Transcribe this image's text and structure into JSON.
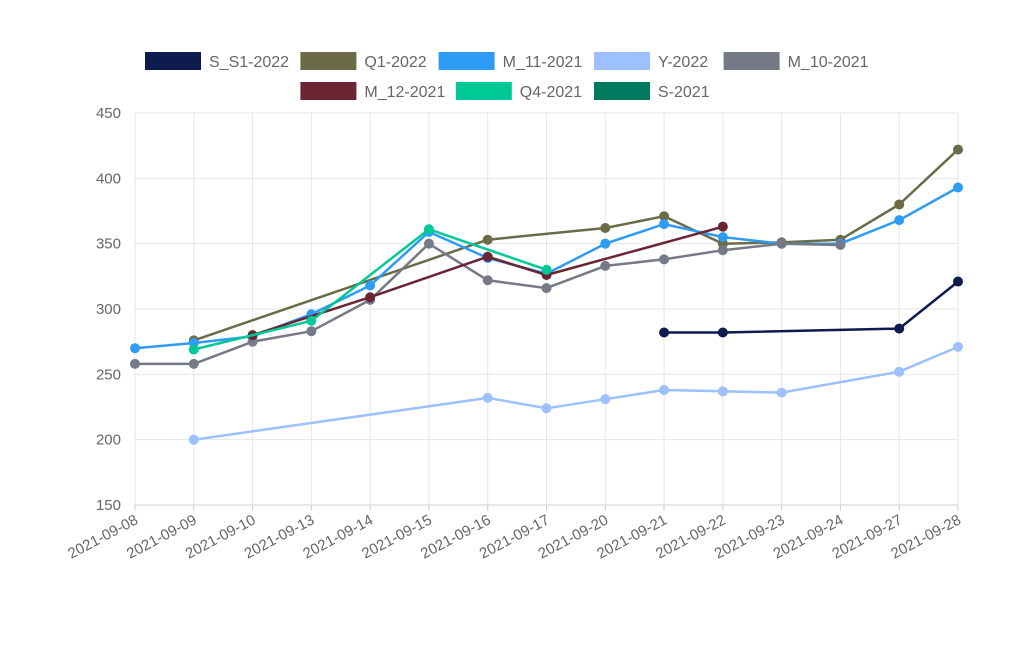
{
  "chart_data": {
    "type": "line",
    "title": "",
    "xlabel": "",
    "ylabel": "",
    "grid": true,
    "legend_position": "top",
    "ylim": [
      150,
      450
    ],
    "y_ticks": [
      150,
      200,
      250,
      300,
      350,
      400,
      450
    ],
    "categories": [
      "2021-09-08",
      "2021-09-09",
      "2021-09-10",
      "2021-09-13",
      "2021-09-14",
      "2021-09-15",
      "2021-09-16",
      "2021-09-17",
      "2021-09-20",
      "2021-09-21",
      "2021-09-22",
      "2021-09-23",
      "2021-09-24",
      "2021-09-27",
      "2021-09-28"
    ],
    "series": [
      {
        "name": "S_S1-2022",
        "color": "#0d1b4f",
        "values": [
          null,
          null,
          null,
          null,
          null,
          null,
          null,
          null,
          null,
          282,
          282,
          null,
          null,
          285,
          321
        ]
      },
      {
        "name": "Q1-2022",
        "color": "#6b6b47",
        "values": [
          null,
          276,
          null,
          null,
          null,
          null,
          353,
          null,
          362,
          371,
          350,
          351,
          353,
          380,
          422
        ]
      },
      {
        "name": "M_11-2021",
        "color": "#2e9bf5",
        "values": [
          270,
          274,
          279,
          296,
          318,
          359,
          339,
          327,
          350,
          365,
          355,
          350,
          350,
          368,
          393
        ]
      },
      {
        "name": "Y-2022",
        "color": "#9dc0ff",
        "values": [
          null,
          200,
          null,
          null,
          null,
          null,
          232,
          224,
          231,
          238,
          237,
          236,
          null,
          252,
          271
        ]
      },
      {
        "name": "M_10-2021",
        "color": "#767986",
        "values": [
          258,
          258,
          275,
          283,
          307,
          350,
          322,
          316,
          333,
          338,
          345,
          350,
          349,
          null,
          null
        ]
      },
      {
        "name": "M_12-2021",
        "color": "#6b2532",
        "values": [
          null,
          null,
          280,
          null,
          309,
          null,
          340,
          326,
          null,
          null,
          363,
          null,
          null,
          null,
          null
        ]
      },
      {
        "name": "Q4-2021",
        "color": "#00c896",
        "values": [
          null,
          269,
          null,
          291,
          null,
          361,
          null,
          330,
          null,
          null,
          null,
          null,
          null,
          null,
          null
        ]
      },
      {
        "name": "S-2021",
        "color": "#007a5e",
        "values": [
          null,
          null,
          null,
          null,
          null,
          null,
          null,
          null,
          null,
          null,
          null,
          null,
          null,
          null,
          null
        ]
      }
    ]
  }
}
